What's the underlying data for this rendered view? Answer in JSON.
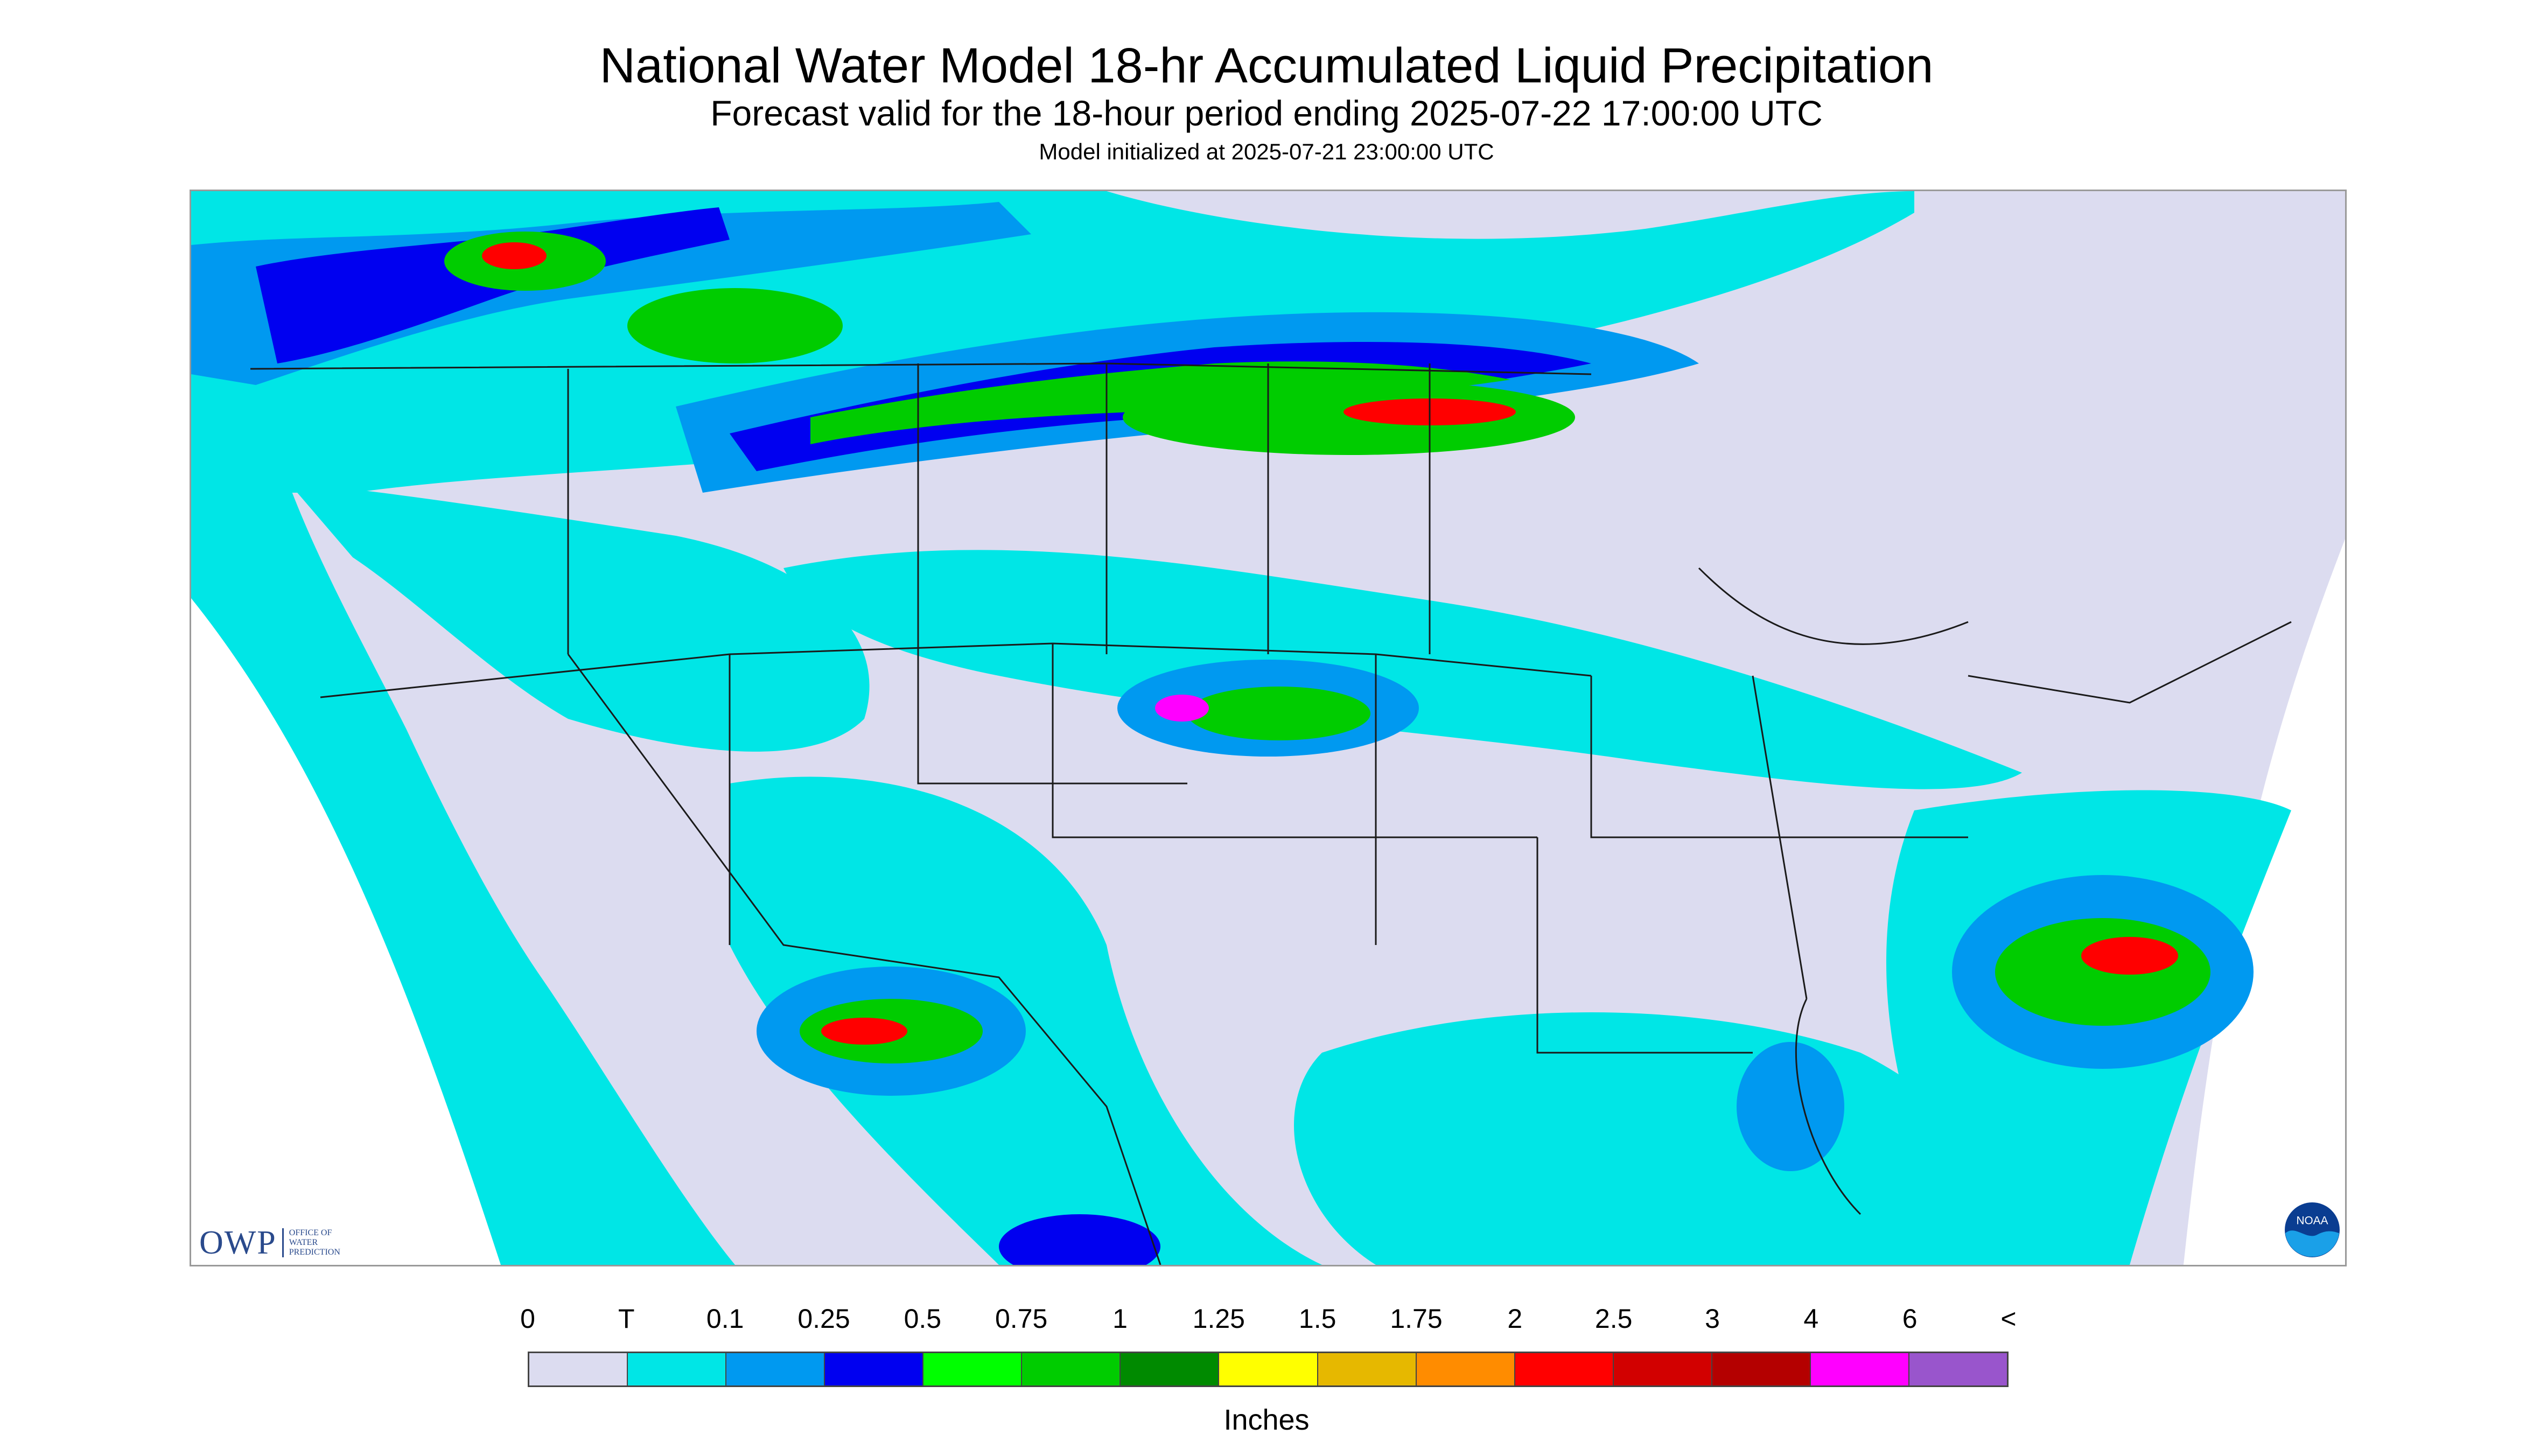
{
  "header": {
    "title": "National Water Model 18-hr Accumulated Liquid Precipitation",
    "subtitle": "Forecast valid for the 18-hour period ending 2025-07-22 17:00:00 UTC",
    "init": "Model initialized at 2025-07-21 23:00:00 UTC"
  },
  "logos": {
    "owp": {
      "mark": "OWP",
      "text_lines": [
        "OFFICE OF",
        "WATER",
        "PREDICTION"
      ]
    },
    "noaa": {
      "text": "NOAA"
    }
  },
  "legend": {
    "labels": [
      "0",
      "T",
      "0.1",
      "0.25",
      "0.5",
      "0.75",
      "1",
      "1.25",
      "1.5",
      "1.75",
      "2",
      "2.5",
      "3",
      "4",
      "6",
      "<"
    ],
    "colors": [
      "#dcdcf0",
      "#00e6e6",
      "#0099f0",
      "#0000f0",
      "#00ff00",
      "#00cc00",
      "#008a00",
      "#ffff00",
      "#e6b800",
      "#ff8c00",
      "#ff0000",
      "#d20000",
      "#b40000",
      "#ff00ff",
      "#9955cc"
    ],
    "units": "Inches"
  },
  "map": {
    "colors": {
      "no_data": "#ffffff",
      "dry": "#dcdcf0",
      "trace": "#00e6e6",
      "light": "#0099f0",
      "moderate": "#0000f0",
      "heavy": "#00cc00",
      "very_heavy": "#ff0000",
      "extreme": "#ff00ff",
      "boundary": "#1a1a1a"
    }
  }
}
